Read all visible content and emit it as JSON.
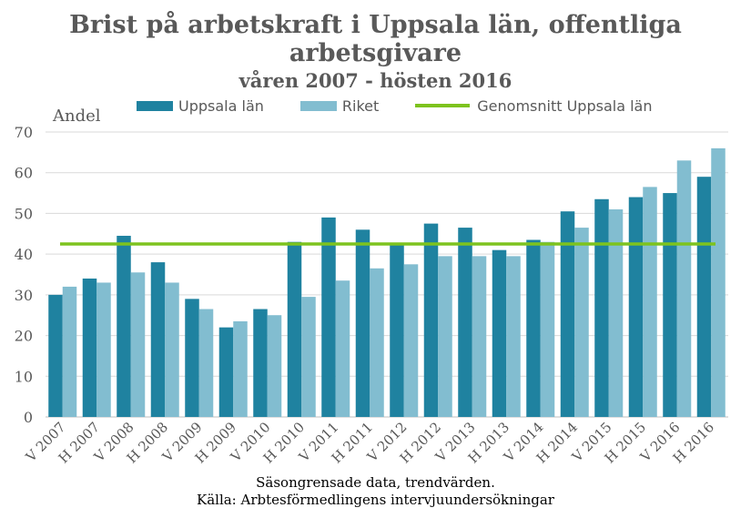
{
  "chart_data": {
    "type": "bar",
    "title": "Brist på arbetskraft i Uppsala län, offentliga arbetsgivare",
    "subtitle": "våren 2007 - hösten 2016",
    "ylabel": "Andel",
    "ylim": [
      0,
      70
    ],
    "yticks": [
      0,
      10,
      20,
      30,
      40,
      50,
      60,
      70
    ],
    "grid": true,
    "legend_position": "top",
    "categories": [
      "V 2007",
      "H 2007",
      "V 2008",
      "H 2008",
      "V 2009",
      "H 2009",
      "V 2010",
      "H 2010",
      "V 2011",
      "H 2011",
      "V 2012",
      "H 2012",
      "V 2013",
      "H 2013",
      "V 2014",
      "H 2014",
      "V 2015",
      "H 2015",
      "V 2016",
      "H 2016"
    ],
    "series": [
      {
        "name": "Uppsala län",
        "color": "#1F82A0",
        "values": [
          30.0,
          34.0,
          44.5,
          38.0,
          29.0,
          22.0,
          26.5,
          43.0,
          49.0,
          46.0,
          42.5,
          47.5,
          46.5,
          41.0,
          43.5,
          50.5,
          53.5,
          54.0,
          55.0,
          59.0
        ]
      },
      {
        "name": "Riket",
        "color": "#82BDD0",
        "values": [
          32.0,
          33.0,
          35.5,
          33.0,
          26.5,
          23.5,
          25.0,
          29.5,
          33.5,
          36.5,
          37.5,
          39.5,
          39.5,
          39.5,
          43.0,
          46.5,
          51.0,
          56.5,
          63.0,
          66.0
        ]
      }
    ],
    "reference_line": {
      "name": "Genomsnitt Uppsala län",
      "color": "#7DC31E",
      "value": 42.5
    }
  },
  "footnotes": {
    "line1": "Säsongrensade data, trendvärden.",
    "line2": "Källa: Arbtesförmedlingens intervjuundersökningar"
  }
}
